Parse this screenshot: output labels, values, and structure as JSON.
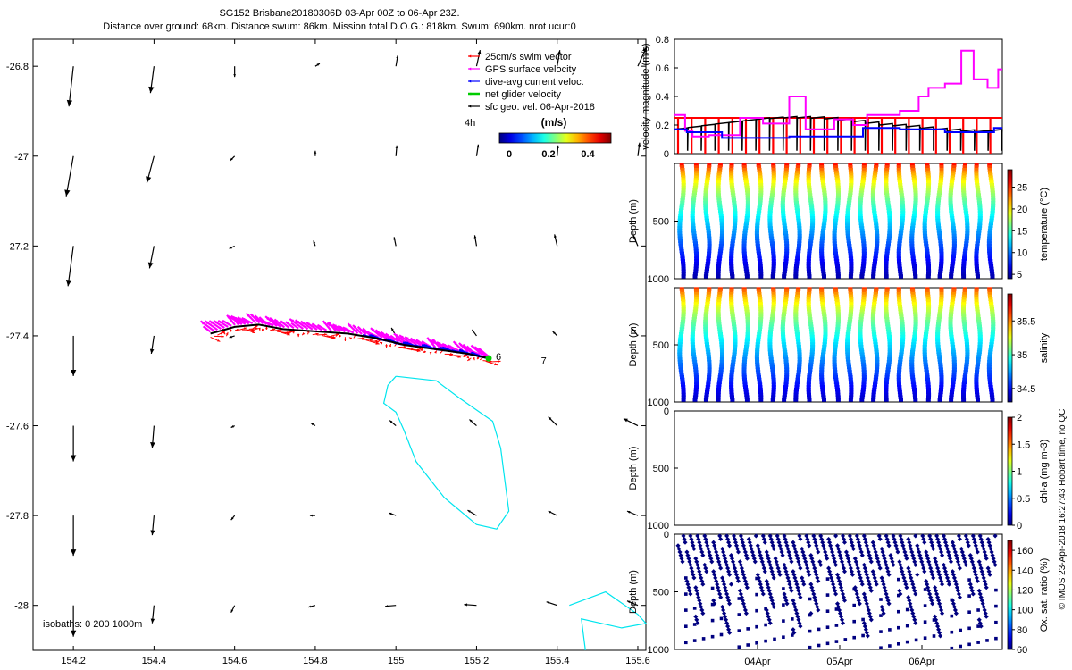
{
  "header": {
    "line1": "SG152 Brisbane20180306D 03-Apr 00Z to 06-Apr 23Z.",
    "line2": "Distance over ground: 68km. Distance swum: 86km. Mission total D.O.G.: 818km. Swum: 690km. nrot ucur:0"
  },
  "map": {
    "legend": [
      "25cm/s swim vector",
      "GPS surface velocity",
      "dive-avg current veloc.",
      "net glider velocity",
      "sfc geo. vel. 06-Apr-2018"
    ],
    "legend_colors": [
      "#ff0000",
      "#ff00ff",
      "#0000ff",
      "#00cc00",
      "#000000"
    ],
    "scale_hint": "4h",
    "colorbar_title": "(m/s)",
    "colorbar_ticks": [
      "0",
      "0.2",
      "0.4"
    ],
    "isobath_note": "isobaths: 0   200  1000m",
    "day_labels": [
      "6",
      "7"
    ]
  },
  "colors": {
    "temperature": "#2a9df4",
    "magenta": "#ff00ff",
    "red": "#ff0000",
    "blue": "#0000ff",
    "isobath": "#00e5ee"
  },
  "credit": "© IMOS 23-Apr-2018 16:27:43 Hobart time, no QC",
  "chart_data": [
    {
      "type": "scatter",
      "title": "",
      "xlabel": "",
      "ylabel": "",
      "xlim": [
        154.1,
        155.62
      ],
      "ylim": [
        -28.1,
        -26.74
      ],
      "x_ticks": [
        "154.2",
        "154.4",
        "154.6",
        "154.8",
        "155",
        "155.2",
        "155.4",
        "155.6"
      ],
      "y_ticks": [
        "-26.8",
        "-27",
        "-27.2",
        "-27.4",
        "-27.6",
        "-27.8",
        "-28"
      ],
      "glider_track": [
        [
          154.54,
          -27.395
        ],
        [
          154.6,
          -27.38
        ],
        [
          154.66,
          -27.375
        ],
        [
          154.72,
          -27.385
        ],
        [
          154.8,
          -27.39
        ],
        [
          154.88,
          -27.395
        ],
        [
          154.95,
          -27.405
        ],
        [
          155.02,
          -27.42
        ],
        [
          155.1,
          -27.43
        ],
        [
          155.18,
          -27.44
        ],
        [
          155.23,
          -27.45
        ]
      ],
      "isobath_200m": [
        [
          155.0,
          -27.49
        ],
        [
          155.1,
          -27.5
        ],
        [
          155.16,
          -27.54
        ],
        [
          155.24,
          -27.59
        ],
        [
          155.26,
          -27.65
        ],
        [
          155.27,
          -27.72
        ],
        [
          155.28,
          -27.79
        ],
        [
          155.25,
          -27.83
        ],
        [
          155.2,
          -27.82
        ],
        [
          155.12,
          -27.76
        ],
        [
          155.05,
          -27.68
        ],
        [
          155.02,
          -27.61
        ],
        [
          155.0,
          -27.57
        ],
        [
          154.97,
          -27.55
        ],
        [
          154.98,
          -27.51
        ],
        [
          155.0,
          -27.49
        ]
      ],
      "isobath_1000m": [
        [
          155.43,
          -28.0
        ],
        [
          155.52,
          -27.97
        ],
        [
          155.6,
          -28.02
        ],
        [
          155.62,
          -28.04
        ],
        [
          155.56,
          -28.05
        ],
        [
          155.46,
          -28.03
        ],
        [
          155.47,
          -28.1
        ]
      ],
      "surface_vectors": [
        {
          "lon": 154.2,
          "lat": -26.8,
          "u": -0.05,
          "v": -0.45
        },
        {
          "lon": 154.4,
          "lat": -26.8,
          "u": -0.04,
          "v": -0.3
        },
        {
          "lon": 154.6,
          "lat": -26.8,
          "u": 0.0,
          "v": -0.12
        },
        {
          "lon": 154.8,
          "lat": -26.8,
          "u": 0.05,
          "v": 0.03
        },
        {
          "lon": 155.0,
          "lat": -26.8,
          "u": 0.02,
          "v": 0.12
        },
        {
          "lon": 155.2,
          "lat": -26.8,
          "u": 0.04,
          "v": 0.18
        },
        {
          "lon": 155.4,
          "lat": -26.8,
          "u": 0.03,
          "v": 0.18
        },
        {
          "lon": 155.6,
          "lat": -26.8,
          "u": 0.1,
          "v": 0.22
        },
        {
          "lon": 154.2,
          "lat": -27.0,
          "u": -0.08,
          "v": -0.45
        },
        {
          "lon": 154.4,
          "lat": -27.0,
          "u": -0.08,
          "v": -0.3
        },
        {
          "lon": 154.6,
          "lat": -27.0,
          "u": -0.05,
          "v": -0.05
        },
        {
          "lon": 154.8,
          "lat": -27.0,
          "u": 0.0,
          "v": 0.06
        },
        {
          "lon": 155.0,
          "lat": -27.0,
          "u": 0.01,
          "v": 0.12
        },
        {
          "lon": 155.2,
          "lat": -27.0,
          "u": 0.02,
          "v": 0.13
        },
        {
          "lon": 155.4,
          "lat": -27.0,
          "u": 0.01,
          "v": 0.12
        },
        {
          "lon": 155.6,
          "lat": -27.0,
          "u": 0.02,
          "v": 0.15
        },
        {
          "lon": 154.2,
          "lat": -27.2,
          "u": -0.06,
          "v": -0.45
        },
        {
          "lon": 154.4,
          "lat": -27.2,
          "u": -0.05,
          "v": -0.25
        },
        {
          "lon": 154.6,
          "lat": -27.2,
          "u": -0.06,
          "v": -0.03
        },
        {
          "lon": 154.8,
          "lat": -27.2,
          "u": -0.02,
          "v": 0.06
        },
        {
          "lon": 155.0,
          "lat": -27.2,
          "u": -0.02,
          "v": 0.1
        },
        {
          "lon": 155.2,
          "lat": -27.2,
          "u": -0.02,
          "v": 0.12
        },
        {
          "lon": 155.4,
          "lat": -27.2,
          "u": -0.03,
          "v": 0.13
        },
        {
          "lon": 155.6,
          "lat": -27.2,
          "u": -0.05,
          "v": 0.12
        },
        {
          "lon": 154.2,
          "lat": -27.4,
          "u": 0.0,
          "v": -0.45
        },
        {
          "lon": 154.4,
          "lat": -27.4,
          "u": -0.03,
          "v": -0.2
        },
        {
          "lon": 154.6,
          "lat": -27.4,
          "u": -0.06,
          "v": -0.02
        },
        {
          "lon": 155.0,
          "lat": -27.4,
          "u": -0.05,
          "v": 0.09
        },
        {
          "lon": 155.2,
          "lat": -27.4,
          "u": -0.05,
          "v": 0.07
        },
        {
          "lon": 155.4,
          "lat": -27.4,
          "u": -0.05,
          "v": 0.05
        },
        {
          "lon": 155.6,
          "lat": -27.4,
          "u": -0.06,
          "v": 0.08
        },
        {
          "lon": 154.2,
          "lat": -27.6,
          "u": 0.0,
          "v": -0.4
        },
        {
          "lon": 154.4,
          "lat": -27.6,
          "u": -0.02,
          "v": -0.25
        },
        {
          "lon": 154.6,
          "lat": -27.6,
          "u": -0.04,
          "v": -0.02
        },
        {
          "lon": 154.8,
          "lat": -27.6,
          "u": -0.05,
          "v": 0.03
        },
        {
          "lon": 155.0,
          "lat": -27.6,
          "u": -0.07,
          "v": 0.06
        },
        {
          "lon": 155.2,
          "lat": -27.6,
          "u": -0.08,
          "v": 0.07
        },
        {
          "lon": 155.4,
          "lat": -27.6,
          "u": -0.1,
          "v": 0.1
        },
        {
          "lon": 155.6,
          "lat": -27.6,
          "u": -0.16,
          "v": 0.08
        },
        {
          "lon": 154.2,
          "lat": -27.8,
          "u": 0.0,
          "v": -0.45
        },
        {
          "lon": 154.4,
          "lat": -27.8,
          "u": -0.02,
          "v": -0.22
        },
        {
          "lon": 154.6,
          "lat": -27.8,
          "u": -0.04,
          "v": -0.05
        },
        {
          "lon": 154.8,
          "lat": -27.8,
          "u": -0.06,
          "v": 0.0
        },
        {
          "lon": 155.0,
          "lat": -27.8,
          "u": -0.08,
          "v": 0.03
        },
        {
          "lon": 155.2,
          "lat": -27.8,
          "u": -0.1,
          "v": 0.06
        },
        {
          "lon": 155.4,
          "lat": -27.8,
          "u": -0.1,
          "v": 0.05
        },
        {
          "lon": 155.6,
          "lat": -27.8,
          "u": -0.12,
          "v": 0.05
        },
        {
          "lon": 154.2,
          "lat": -28.0,
          "u": 0.0,
          "v": -0.35
        },
        {
          "lon": 154.4,
          "lat": -28.0,
          "u": -0.02,
          "v": -0.2
        },
        {
          "lon": 154.6,
          "lat": -28.0,
          "u": -0.04,
          "v": -0.08
        },
        {
          "lon": 154.8,
          "lat": -28.0,
          "u": -0.08,
          "v": -0.02
        },
        {
          "lon": 155.0,
          "lat": -28.0,
          "u": -0.12,
          "v": -0.01
        },
        {
          "lon": 155.2,
          "lat": -28.0,
          "u": -0.14,
          "v": 0.01
        },
        {
          "lon": 155.4,
          "lat": -28.0,
          "u": -0.12,
          "v": 0.04
        },
        {
          "lon": 155.6,
          "lat": -28.0,
          "u": -0.12,
          "v": 0.05
        }
      ]
    },
    {
      "type": "line",
      "ylabel": "velocity magnitude (m/s)",
      "ylim": [
        0,
        0.8
      ],
      "y_ticks": [
        "0",
        "0.2",
        "0.4",
        "0.6",
        "0.8"
      ],
      "xlim": [
        0,
        4
      ],
      "series": [
        {
          "color": "#ff00ff",
          "points": [
            [
              0,
              0.27
            ],
            [
              0.13,
              0.27
            ],
            [
              0.13,
              0.16
            ],
            [
              0.22,
              0.16
            ],
            [
              0.22,
              0.12
            ],
            [
              0.42,
              0.12
            ],
            [
              0.42,
              0.13
            ],
            [
              0.8,
              0.13
            ],
            [
              0.8,
              0.25
            ],
            [
              1.08,
              0.25
            ],
            [
              1.08,
              0.21
            ],
            [
              1.4,
              0.21
            ],
            [
              1.4,
              0.4
            ],
            [
              1.6,
              0.4
            ],
            [
              1.6,
              0.17
            ],
            [
              1.95,
              0.17
            ],
            [
              1.95,
              0.24
            ],
            [
              2.18,
              0.24
            ],
            [
              2.18,
              0.2
            ],
            [
              2.35,
              0.2
            ],
            [
              2.35,
              0.27
            ],
            [
              2.75,
              0.27
            ],
            [
              2.75,
              0.3
            ],
            [
              2.98,
              0.3
            ],
            [
              2.98,
              0.4
            ],
            [
              3.1,
              0.4
            ],
            [
              3.1,
              0.46
            ],
            [
              3.3,
              0.46
            ],
            [
              3.3,
              0.49
            ],
            [
              3.5,
              0.49
            ],
            [
              3.5,
              0.72
            ],
            [
              3.65,
              0.72
            ],
            [
              3.65,
              0.52
            ],
            [
              3.82,
              0.52
            ],
            [
              3.82,
              0.46
            ],
            [
              3.95,
              0.46
            ],
            [
              3.95,
              0.59
            ],
            [
              4,
              0.59
            ]
          ]
        },
        {
          "color": "#0000ff",
          "points": [
            [
              0,
              0.17
            ],
            [
              0.15,
              0.17
            ],
            [
              0.15,
              0.15
            ],
            [
              0.58,
              0.15
            ],
            [
              0.58,
              0.11
            ],
            [
              1.4,
              0.11
            ],
            [
              1.4,
              0.12
            ],
            [
              2.3,
              0.12
            ],
            [
              2.3,
              0.18
            ],
            [
              2.75,
              0.18
            ],
            [
              2.75,
              0.17
            ],
            [
              3.3,
              0.17
            ],
            [
              3.3,
              0.15
            ],
            [
              3.9,
              0.15
            ],
            [
              3.9,
              0.18
            ],
            [
              4,
              0.18
            ]
          ]
        },
        {
          "color": "#000000",
          "points": [
            [
              0,
              0.17
            ],
            [
              0.4,
              0.2
            ],
            [
              0.7,
              0.22
            ],
            [
              1.0,
              0.24
            ],
            [
              1.3,
              0.25
            ],
            [
              1.6,
              0.25
            ],
            [
              1.9,
              0.24
            ],
            [
              2.2,
              0.22
            ],
            [
              2.5,
              0.2
            ],
            [
              2.8,
              0.19
            ],
            [
              3.1,
              0.17
            ],
            [
              3.4,
              0.16
            ],
            [
              3.7,
              0.15
            ],
            [
              4,
              0.17
            ]
          ]
        }
      ],
      "swim_level": 0.25
    },
    {
      "type": "heatmap",
      "ylabel": "Depth (m)",
      "colorbar_label": "temperature (°C)",
      "ylim": [
        1000,
        0
      ],
      "y_ticks": [
        "500",
        "1000"
      ],
      "colorbar_ticks": [
        "5",
        "10",
        "15",
        "20",
        "25"
      ],
      "crange": [
        4,
        29
      ],
      "surface_value": 27,
      "bottom_value": 5,
      "profiles": 25
    },
    {
      "type": "heatmap",
      "ylabel": "Depth (m)",
      "colorbar_label": "salinity",
      "ylim": [
        1000,
        0
      ],
      "y_ticks": [
        "500",
        "1000"
      ],
      "colorbar_ticks": [
        "34.5",
        "35",
        "35.5"
      ],
      "crange": [
        34.3,
        35.9
      ],
      "surface_value": 35.7,
      "bottom_value": 34.4,
      "profiles": 25
    },
    {
      "type": "heatmap",
      "ylabel": "Depth (m)",
      "colorbar_label": "chl-a (mg m-3)",
      "ylim": [
        1000,
        0
      ],
      "y_ticks": [
        "0",
        "500",
        "1000"
      ],
      "colorbar_ticks": [
        "0",
        "0.5",
        "1",
        "1.5",
        "2"
      ],
      "crange": [
        0,
        2
      ],
      "profiles": 0
    },
    {
      "type": "scatter",
      "ylabel": "Depth (m)",
      "colorbar_label": "Ox. sat. ratio (%)",
      "ylim": [
        1000,
        0
      ],
      "y_ticks": [
        "0",
        "500",
        "1000"
      ],
      "colorbar_ticks": [
        "60",
        "80",
        "100",
        "120",
        "140",
        "160"
      ],
      "crange": [
        60,
        170
      ],
      "x_ticks": [
        "04Apr",
        "05Apr",
        "06Apr"
      ],
      "value": 60,
      "profiles": 36
    }
  ]
}
